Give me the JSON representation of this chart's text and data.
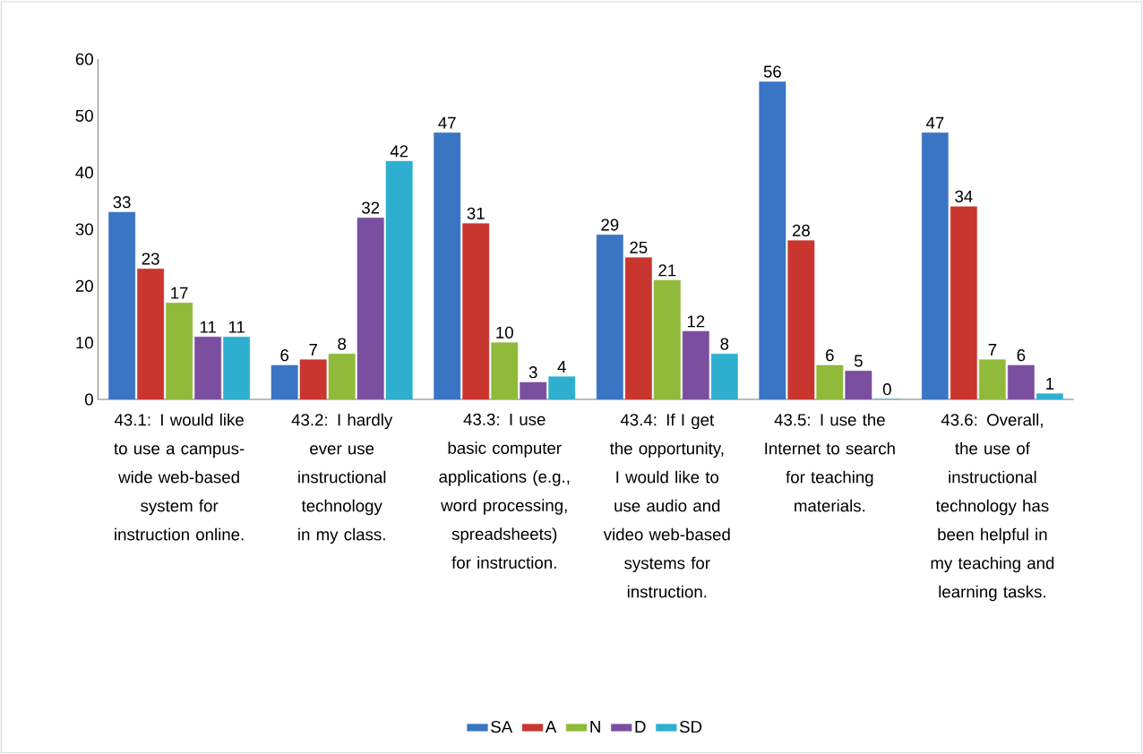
{
  "chart_data": {
    "type": "bar",
    "categories": [
      "43.1: I would like to use a campus-wide web-based system for instruction online.",
      "43.2: I hardly ever use instructional technology in my class.",
      "43.3: I use basic computer applications (e.g., word processing, spreadsheets) for instruction.",
      "43.4: If I get the opportunity, I would like to use audio and video web-based systems for instruction.",
      "43.5: I use the Internet to search for teaching materials.",
      "43.6: Overall, the use of instructional technology has been helpful in my teaching and learning tasks."
    ],
    "series": [
      {
        "name": "SA",
        "color": "#3a75c4",
        "values": [
          33,
          6,
          47,
          29,
          56,
          47
        ]
      },
      {
        "name": "A",
        "color": "#c8362f",
        "values": [
          23,
          7,
          31,
          25,
          28,
          34
        ]
      },
      {
        "name": "N",
        "color": "#8fba3a",
        "values": [
          17,
          8,
          10,
          21,
          6,
          7
        ]
      },
      {
        "name": "D",
        "color": "#7a4fa0",
        "values": [
          11,
          32,
          3,
          12,
          5,
          6
        ]
      },
      {
        "name": "SD",
        "color": "#2fafcf",
        "values": [
          11,
          42,
          4,
          8,
          0,
          1
        ]
      }
    ],
    "ylim": [
      0,
      60
    ],
    "yticks": [
      0,
      10,
      20,
      30,
      40,
      50,
      60
    ],
    "legend": "bottom",
    "data_labels": true
  }
}
